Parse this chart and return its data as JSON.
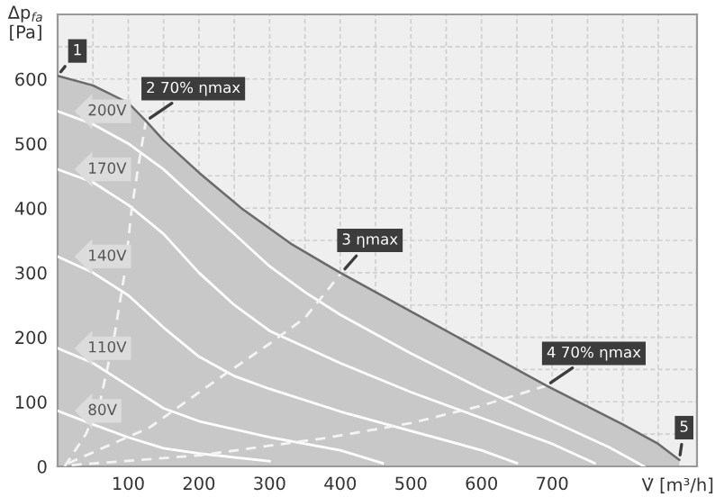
{
  "chart_data": {
    "type": "line",
    "xlabel": "V̇ [m³/h]",
    "ylabel": "Δp$_{fa}$\n[Pa]",
    "xlim": [
      0,
      905
    ],
    "ylim": [
      0,
      700
    ],
    "xticks": [
      {
        "value": 0,
        "label": null
      },
      {
        "value": 50,
        "label": null
      },
      100,
      {
        "value": 150,
        "label": null
      },
      200,
      {
        "value": 250,
        "label": null
      },
      300,
      {
        "value": 350,
        "label": null
      },
      400,
      {
        "value": 450,
        "label": null
      },
      500,
      {
        "value": 550,
        "label": null
      },
      600,
      {
        "value": 650,
        "label": null
      },
      700,
      {
        "value": 750,
        "label": null
      },
      {
        "value": 800,
        "label": null
      },
      {
        "value": 850,
        "label": null
      }
    ],
    "yticks": [
      0,
      {
        "value": 50,
        "label": null
      },
      100,
      {
        "value": 150,
        "label": null
      },
      200,
      {
        "value": 250,
        "label": null
      },
      300,
      {
        "value": 350,
        "label": null
      },
      400,
      {
        "value": 450,
        "label": null
      },
      500,
      {
        "value": 550,
        "label": null
      },
      600,
      {
        "value": 650,
        "label": null
      }
    ],
    "grid": true,
    "series": [
      {
        "type": "area",
        "color": "#c8c8c8",
        "x": [
          0,
          50,
          100,
          125,
          150,
          200,
          260,
          330,
          400,
          500,
          600,
          692,
          800,
          850,
          880
        ],
        "values": [
          605,
          590,
          563,
          535,
          505,
          455,
          400,
          345,
          300,
          240,
          180,
          125,
          65,
          35,
          10
        ]
      },
      {
        "name": "200V",
        "color": "#ffffff",
        "x": [
          0,
          50,
          100,
          150,
          200,
          250,
          300,
          350,
          400,
          500,
          600,
          700,
          780,
          830
        ],
        "values": [
          550,
          530,
          500,
          460,
          410,
          360,
          310,
          270,
          235,
          175,
          120,
          70,
          30,
          0
        ]
      },
      {
        "name": "170V",
        "color": "#ffffff",
        "x": [
          0,
          50,
          100,
          150,
          200,
          250,
          300,
          400,
          500,
          600,
          700,
          760
        ],
        "values": [
          460,
          440,
          405,
          360,
          300,
          250,
          210,
          160,
          115,
          75,
          35,
          5
        ]
      },
      {
        "name": "140V",
        "color": "#ffffff",
        "x": [
          0,
          50,
          100,
          150,
          200,
          250,
          300,
          400,
          500,
          600,
          650
        ],
        "values": [
          325,
          300,
          265,
          215,
          170,
          140,
          120,
          85,
          55,
          25,
          5
        ]
      },
      {
        "name": "110V",
        "color": "#ffffff",
        "x": [
          0,
          50,
          100,
          150,
          200,
          300,
          400,
          460
        ],
        "values": [
          183,
          160,
          125,
          90,
          70,
          45,
          25,
          5
        ]
      },
      {
        "name": "80V",
        "color": "#ffffff",
        "x": [
          0,
          50,
          100,
          150,
          200,
          300
        ],
        "values": [
          86,
          65,
          45,
          28,
          20,
          8
        ]
      },
      {
        "color": "#f4f4f4",
        "line_style": "dashed",
        "x": [
          10,
          40,
          60,
          80,
          95,
          105,
          115,
          125
        ],
        "values": [
          0,
          50,
          100,
          200,
          300,
          400,
          470,
          535
        ]
      },
      {
        "color": "#f4f4f4",
        "line_style": "dashed",
        "x": [
          15,
          130,
          220,
          300,
          350,
          402
        ],
        "values": [
          5,
          60,
          130,
          190,
          230,
          300
        ]
      },
      {
        "color": "#f4f4f4",
        "line_style": "dashed",
        "x": [
          20,
          200,
          380,
          500,
          600,
          692
        ],
        "values": [
          2,
          17,
          44,
          67,
          94,
          125
        ]
      }
    ],
    "annotations": [
      {
        "text": "1",
        "x": 0,
        "y": 605
      },
      {
        "text": "2 70% ηmax",
        "x": 125,
        "y": 535
      },
      {
        "text": "3 ηmax",
        "x": 402,
        "y": 300
      },
      {
        "text": "4 70% ηmax",
        "x": 692,
        "y": 125
      },
      {
        "text": "5",
        "x": 880,
        "y": 10
      }
    ]
  }
}
